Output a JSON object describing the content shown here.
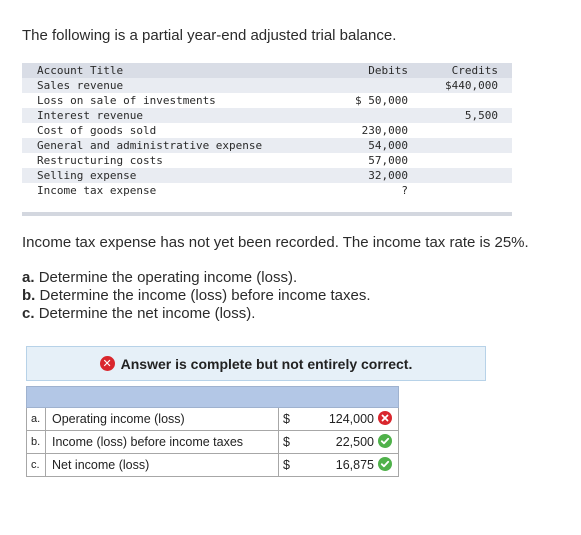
{
  "intro": "The following is a partial year-end adjusted trial balance.",
  "trial_balance": {
    "headers": {
      "title": "Account Title",
      "debits": "Debits",
      "credits": "Credits"
    },
    "rows": [
      {
        "title": "Sales revenue",
        "debit": "",
        "credit": "$440,000"
      },
      {
        "title": "Loss on sale of investments",
        "debit": "$ 50,000",
        "credit": ""
      },
      {
        "title": "Interest revenue",
        "debit": "",
        "credit": "5,500"
      },
      {
        "title": "Cost of goods sold",
        "debit": "230,000",
        "credit": ""
      },
      {
        "title": "General and administrative expense",
        "debit": "54,000",
        "credit": ""
      },
      {
        "title": "Restructuring costs",
        "debit": "57,000",
        "credit": ""
      },
      {
        "title": "Selling expense",
        "debit": "32,000",
        "credit": ""
      },
      {
        "title": "Income tax expense",
        "debit": "?",
        "credit": ""
      }
    ]
  },
  "note": "Income tax expense has not yet been recorded. The income tax rate is 25%.",
  "parts": [
    {
      "letter": "a.",
      "text": "Determine the operating income (loss)."
    },
    {
      "letter": "b.",
      "text": "Determine the income (loss) before income taxes."
    },
    {
      "letter": "c.",
      "text": "Determine the net income (loss)."
    }
  ],
  "banner": {
    "message": "Answer is complete but not entirely correct.",
    "icon": "x-circle-icon"
  },
  "answers": [
    {
      "letter": "a.",
      "label": "Operating income (loss)",
      "dollar": "$",
      "value": "124,000",
      "status": "wrong"
    },
    {
      "letter": "b.",
      "label": "Income (loss) before income taxes",
      "dollar": "$",
      "value": "22,500",
      "status": "correct"
    },
    {
      "letter": "c.",
      "label": "Net income (loss)",
      "dollar": "$",
      "value": "16,875",
      "status": "correct"
    }
  ],
  "colors": {
    "wrong": "#d9262d",
    "correct": "#4fb14a",
    "banner_bg": "#e6f0f8",
    "answer_header": "#b3c7e6"
  }
}
